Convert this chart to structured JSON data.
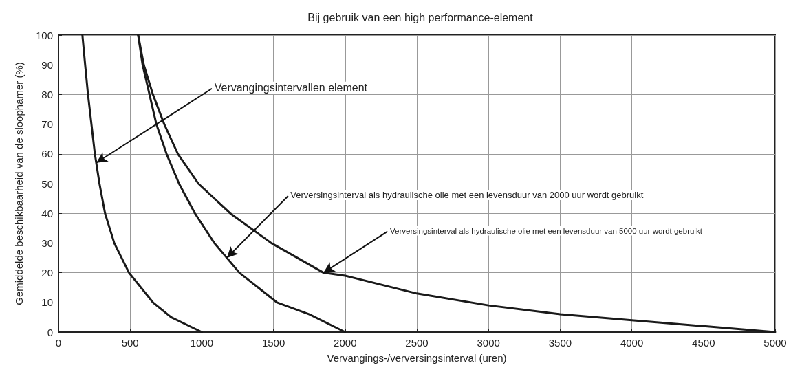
{
  "chart_data": {
    "type": "line",
    "title": "Bij gebruik van een high performance-element",
    "xlabel": "Vervangings-/verversingsinterval (uren)",
    "ylabel": "Gemiddelde beschikbaarheid van de sloophamer (%)",
    "xlim": [
      0,
      5000
    ],
    "xticks": [
      0,
      500,
      1000,
      1500,
      2000,
      2500,
      3000,
      3500,
      4000,
      4500,
      5000
    ],
    "ylim": [
      0,
      100
    ],
    "yticks": [
      0,
      10,
      20,
      30,
      40,
      50,
      60,
      70,
      80,
      90,
      100
    ],
    "grid": true,
    "marker": "none",
    "line_style": "solid",
    "series": [
      {
        "color": "#1a1a1a",
        "x": [
          167,
          186,
          206,
          230,
          254,
          286,
          325,
          389,
          492,
          659,
          786,
          1000
        ],
        "values": [
          100,
          90,
          80,
          70,
          60,
          50,
          40,
          30,
          20,
          10,
          5,
          0
        ]
      },
      {
        "color": "#1a1a1a",
        "x": [
          556,
          587,
          635,
          683,
          754,
          841,
          952,
          1087,
          1262,
          1524,
          1750,
          2000
        ],
        "values": [
          100,
          90,
          80,
          70,
          60,
          50,
          40,
          30,
          20,
          10,
          6,
          0
        ]
      },
      {
        "color": "#1a1a1a",
        "x": [
          556,
          595,
          659,
          738,
          833,
          976,
          1198,
          1484,
          1849,
          2000,
          2500,
          3000,
          3500,
          4000,
          4500,
          5000
        ],
        "values": [
          100,
          90,
          80,
          70,
          60,
          50,
          40,
          30,
          20,
          19,
          13,
          9,
          6,
          4,
          2,
          0
        ]
      }
    ],
    "annotations": [
      {
        "text": "Vervangingsintervallen element",
        "x": 264,
        "y": 57
      },
      {
        "text": "Verversingsinterval als hydraulische olie met een levensduur van 2000 uur wordt gebruikt",
        "x": 1175,
        "y": 25
      },
      {
        "text": "Verversingsinterval als hydraulische olie met een levensduur van 5000 uur wordt gebruikt",
        "x": 1849,
        "y": 20
      }
    ]
  }
}
